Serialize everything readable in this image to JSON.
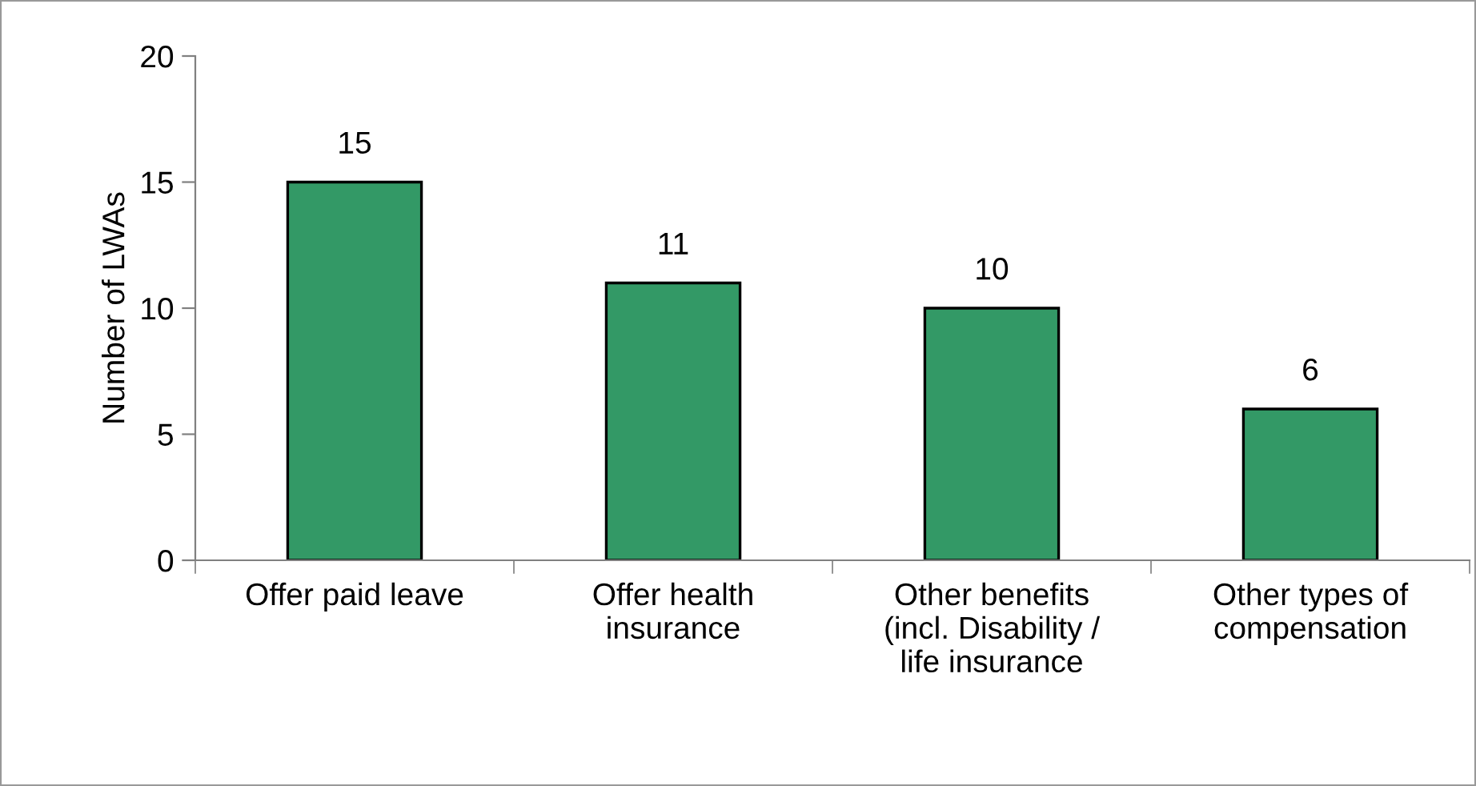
{
  "chart_data": {
    "type": "bar",
    "categories": [
      "Offer paid leave",
      "Offer health\ninsurance",
      "Other benefits\n(incl. Disability /\nlife insurance",
      "Other types of\ncompensation"
    ],
    "values": [
      15,
      11,
      10,
      6
    ],
    "color": "#339966",
    "ylabel": "Number of LWAs",
    "ylim": [
      0,
      20
    ],
    "yticks": [
      0,
      5,
      10,
      15,
      20
    ],
    "data_labels": true,
    "grid": false,
    "legend": false
  }
}
